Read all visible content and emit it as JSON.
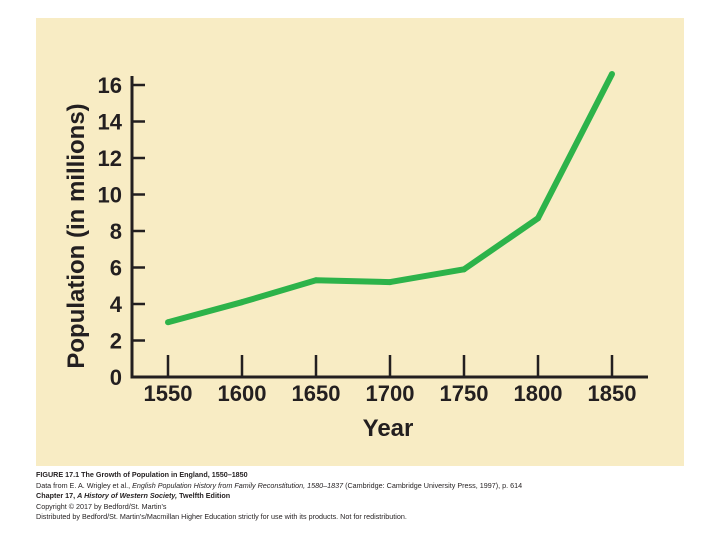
{
  "chart_data": {
    "type": "line",
    "title": "",
    "xlabel": "Year",
    "ylabel": "Population (in millions)",
    "x": [
      1550,
      1600,
      1650,
      1700,
      1750,
      1800,
      1850
    ],
    "series": [
      {
        "name": "Population of England",
        "values": [
          3.0,
          4.1,
          5.3,
          5.2,
          5.9,
          8.7,
          16.6
        ]
      }
    ],
    "xticks": [
      1550,
      1600,
      1650,
      1700,
      1750,
      1800,
      1850
    ],
    "yticks": [
      0,
      2,
      4,
      6,
      8,
      10,
      12,
      14,
      16
    ],
    "ylim": [
      0,
      16
    ],
    "grid": false,
    "line_color": "#2db34a"
  },
  "colors": {
    "panel_background": "#f8ecc4",
    "axis": "#231f20",
    "text": "#231f20"
  },
  "caption": {
    "figure_label": "FIGURE 17.1",
    "figure_title": "The Growth of Population in England, 1550–1850",
    "source_prefix": "Data from E. A. Wrigley et al.,",
    "source_book": "English Population History from Family Reconstitution, 1580–1837",
    "source_suffix": "(Cambridge: Cambridge University Press, 1997), p. 614",
    "chapter_prefix": "Chapter 17,",
    "chapter_book": "A History of Western Society,",
    "chapter_edition": "Twelfth Edition",
    "copyright": "Copyright © 2017 by Bedford/St. Martin's",
    "distribution": "Distributed by Bedford/St. Martin's/Macmillan Higher Education strictly for use with its products. Not for redistribution."
  }
}
